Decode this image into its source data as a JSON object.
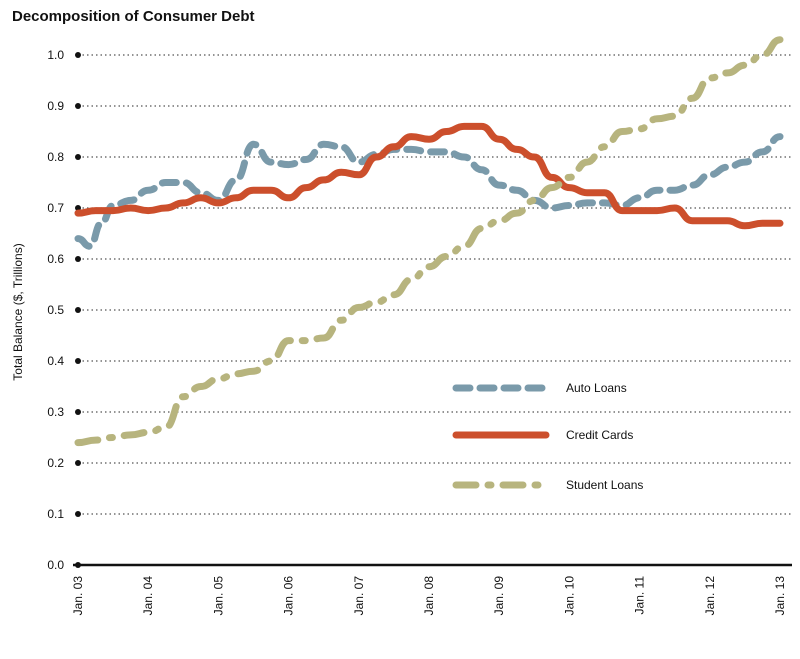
{
  "chart_data": {
    "type": "line",
    "title": "Decomposition of Consumer Debt",
    "xlabel": "",
    "ylabel": "Total Balance ($, Trillions)",
    "ylim": [
      0,
      1.0
    ],
    "yticks": [
      "0.0",
      "0.1",
      "0.2",
      "0.3",
      "0.4",
      "0.5",
      "0.6",
      "0.7",
      "0.8",
      "0.9",
      "1.0"
    ],
    "xticks": [
      "Jan. 03",
      "Jan. 04",
      "Jan. 05",
      "Jan. 06",
      "Jan. 07",
      "Jan. 08",
      "Jan. 09",
      "Jan. 10",
      "Jan. 11",
      "Jan. 12",
      "Jan. 13"
    ],
    "xlim": [
      2003.0,
      2013.0
    ],
    "grid": "horizontal dotted",
    "legend_position": "center-right",
    "series": [
      {
        "name": "Auto Loans",
        "color": "#7a9aaa",
        "style": "dashed",
        "x": [
          2003.0,
          2003.17,
          2003.33,
          2003.5,
          2003.75,
          2004.0,
          2004.25,
          2004.5,
          2004.75,
          2005.0,
          2005.25,
          2005.5,
          2005.75,
          2006.0,
          2006.25,
          2006.5,
          2006.75,
          2007.0,
          2007.25,
          2007.5,
          2007.75,
          2008.0,
          2008.25,
          2008.5,
          2008.75,
          2009.0,
          2009.25,
          2009.5,
          2009.75,
          2010.0,
          2010.25,
          2010.5,
          2010.75,
          2011.0,
          2011.25,
          2011.5,
          2011.75,
          2012.0,
          2012.25,
          2012.5,
          2012.75,
          2013.0
        ],
        "values": [
          0.64,
          0.625,
          0.67,
          0.705,
          0.715,
          0.735,
          0.75,
          0.75,
          0.73,
          0.715,
          0.755,
          0.825,
          0.79,
          0.785,
          0.795,
          0.825,
          0.82,
          0.79,
          0.805,
          0.815,
          0.815,
          0.81,
          0.81,
          0.8,
          0.775,
          0.745,
          0.735,
          0.715,
          0.7,
          0.705,
          0.71,
          0.71,
          0.705,
          0.72,
          0.735,
          0.735,
          0.745,
          0.765,
          0.78,
          0.79,
          0.81,
          0.84
        ]
      },
      {
        "name": "Credit Cards",
        "color": "#cc4f2c",
        "style": "solid",
        "x": [
          2003.0,
          2003.25,
          2003.5,
          2003.75,
          2004.0,
          2004.25,
          2004.5,
          2004.75,
          2005.0,
          2005.25,
          2005.5,
          2005.75,
          2006.0,
          2006.25,
          2006.5,
          2006.75,
          2007.0,
          2007.25,
          2007.5,
          2007.75,
          2008.0,
          2008.25,
          2008.5,
          2008.75,
          2009.0,
          2009.25,
          2009.5,
          2009.75,
          2010.0,
          2010.25,
          2010.5,
          2010.75,
          2011.0,
          2011.25,
          2011.5,
          2011.75,
          2012.0,
          2012.25,
          2012.5,
          2012.75,
          2013.0
        ],
        "values": [
          0.69,
          0.695,
          0.695,
          0.7,
          0.695,
          0.7,
          0.71,
          0.72,
          0.71,
          0.72,
          0.735,
          0.735,
          0.72,
          0.74,
          0.755,
          0.77,
          0.765,
          0.8,
          0.82,
          0.84,
          0.835,
          0.85,
          0.86,
          0.86,
          0.835,
          0.815,
          0.8,
          0.76,
          0.74,
          0.73,
          0.73,
          0.695,
          0.695,
          0.695,
          0.7,
          0.675,
          0.675,
          0.675,
          0.665,
          0.67,
          0.67
        ]
      },
      {
        "name": "Student Loans",
        "color": "#b7b47e",
        "style": "dash-dot",
        "x": [
          2003.0,
          2003.25,
          2003.5,
          2003.75,
          2004.0,
          2004.25,
          2004.5,
          2004.75,
          2005.0,
          2005.25,
          2005.5,
          2005.75,
          2006.0,
          2006.25,
          2006.5,
          2006.75,
          2007.0,
          2007.25,
          2007.5,
          2007.75,
          2008.0,
          2008.25,
          2008.5,
          2008.75,
          2009.0,
          2009.25,
          2009.5,
          2009.75,
          2010.0,
          2010.25,
          2010.5,
          2010.75,
          2011.0,
          2011.25,
          2011.5,
          2011.75,
          2012.0,
          2012.25,
          2012.5,
          2012.75,
          2013.0
        ],
        "values": [
          0.24,
          0.245,
          0.25,
          0.255,
          0.26,
          0.27,
          0.33,
          0.35,
          0.365,
          0.375,
          0.38,
          0.4,
          0.44,
          0.44,
          0.445,
          0.48,
          0.505,
          0.515,
          0.53,
          0.56,
          0.585,
          0.605,
          0.625,
          0.66,
          0.675,
          0.69,
          0.715,
          0.74,
          0.76,
          0.79,
          0.82,
          0.85,
          0.855,
          0.875,
          0.88,
          0.915,
          0.955,
          0.965,
          0.98,
          1.0,
          1.03
        ]
      }
    ]
  }
}
